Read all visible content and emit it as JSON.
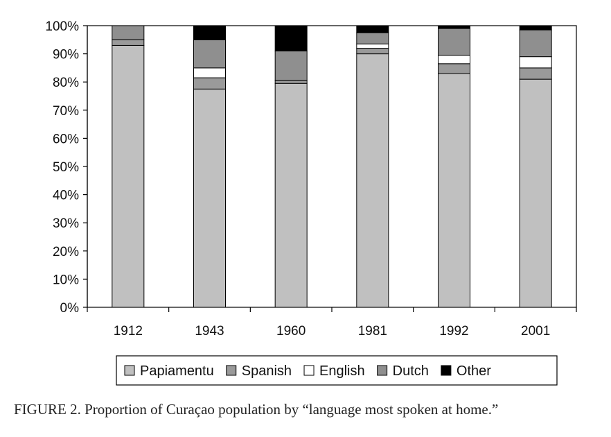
{
  "chart_data": {
    "type": "bar",
    "stacked": true,
    "categories": [
      "1912",
      "1943",
      "1960",
      "1981",
      "1992",
      "2001"
    ],
    "series": [
      {
        "name": "Papiamentu",
        "color": "#c0c0c0",
        "values": [
          93.0,
          77.5,
          79.5,
          90.0,
          83.0,
          81.0
        ]
      },
      {
        "name": "Spanish",
        "color": "#9a9a9a",
        "values": [
          2.0,
          4.0,
          1.0,
          2.0,
          3.5,
          4.0
        ]
      },
      {
        "name": "English",
        "color": "#ffffff",
        "values": [
          0.0,
          3.5,
          0.0,
          1.5,
          3.0,
          4.0
        ]
      },
      {
        "name": "Dutch",
        "color": "#8f8f8f",
        "values": [
          5.0,
          10.0,
          10.5,
          4.0,
          9.5,
          9.5
        ]
      },
      {
        "name": "Other",
        "color": "#000000",
        "values": [
          0.0,
          5.0,
          9.0,
          2.5,
          1.0,
          1.5
        ]
      }
    ],
    "ylim": [
      0,
      100
    ],
    "yticks": [
      "0%",
      "10%",
      "20%",
      "30%",
      "40%",
      "50%",
      "60%",
      "70%",
      "80%",
      "90%",
      "100%"
    ],
    "legend_position": "bottom",
    "grid": false
  },
  "caption": {
    "label": "FIGURE 2.",
    "text": "Proportion of Curaçao population by “language most spoken at home.”"
  }
}
